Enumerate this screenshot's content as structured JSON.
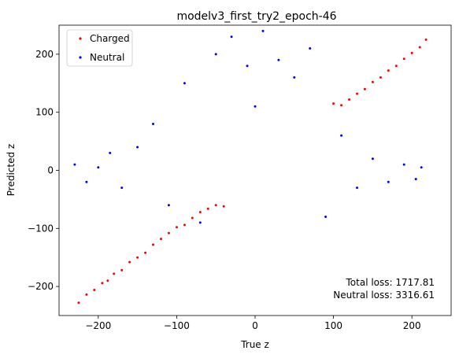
{
  "chart_data": {
    "type": "scatter",
    "title": "modelv3_first_try2_epoch-46",
    "xlabel": "True z",
    "ylabel": "Predicted z",
    "xlim": [
      -250,
      250
    ],
    "ylim": [
      -250,
      250
    ],
    "xticks": [
      -200,
      -100,
      0,
      100,
      200
    ],
    "xtick_labels": [
      "−200",
      "−100",
      "0",
      "100",
      "200"
    ],
    "yticks": [
      -200,
      -100,
      0,
      100,
      200
    ],
    "ytick_labels": [
      "−200",
      "−100",
      "0",
      "100",
      "200"
    ],
    "grid": false,
    "legend_position": "top-left",
    "series": [
      {
        "name": "Charged",
        "color": "#ff0000",
        "marker": "point",
        "points": [
          [
            -225,
            -228
          ],
          [
            -215,
            -214
          ],
          [
            -205,
            -206
          ],
          [
            -195,
            -194
          ],
          [
            -188,
            -190
          ],
          [
            -180,
            -178
          ],
          [
            -170,
            -172
          ],
          [
            -160,
            -158
          ],
          [
            -150,
            -150
          ],
          [
            -140,
            -142
          ],
          [
            -130,
            -128
          ],
          [
            -120,
            -118
          ],
          [
            -110,
            -108
          ],
          [
            -100,
            -98
          ],
          [
            -90,
            -94
          ],
          [
            -80,
            -82
          ],
          [
            -70,
            -72
          ],
          [
            -60,
            -66
          ],
          [
            -50,
            -60
          ],
          [
            -40,
            -62
          ],
          [
            100,
            115
          ],
          [
            110,
            112
          ],
          [
            120,
            122
          ],
          [
            130,
            132
          ],
          [
            140,
            140
          ],
          [
            150,
            152
          ],
          [
            160,
            160
          ],
          [
            170,
            172
          ],
          [
            180,
            180
          ],
          [
            190,
            192
          ],
          [
            200,
            202
          ],
          [
            210,
            212
          ],
          [
            218,
            225
          ]
        ]
      },
      {
        "name": "Neutral",
        "color": "#0000ff",
        "marker": "point",
        "points": [
          [
            -230,
            10
          ],
          [
            -215,
            -20
          ],
          [
            -200,
            5
          ],
          [
            -185,
            30
          ],
          [
            -170,
            -30
          ],
          [
            -150,
            40
          ],
          [
            -130,
            80
          ],
          [
            -110,
            -60
          ],
          [
            -90,
            150
          ],
          [
            -70,
            -90
          ],
          [
            -50,
            200
          ],
          [
            -30,
            230
          ],
          [
            -10,
            180
          ],
          [
            0,
            110
          ],
          [
            10,
            240
          ],
          [
            30,
            190
          ],
          [
            50,
            160
          ],
          [
            70,
            210
          ],
          [
            90,
            -80
          ],
          [
            110,
            60
          ],
          [
            130,
            -30
          ],
          [
            150,
            20
          ],
          [
            170,
            -20
          ],
          [
            190,
            10
          ],
          [
            205,
            -15
          ],
          [
            212,
            5
          ]
        ]
      }
    ],
    "annotations": [
      "Total loss: 1717.81",
      "Neutral loss: 3316.61"
    ]
  }
}
